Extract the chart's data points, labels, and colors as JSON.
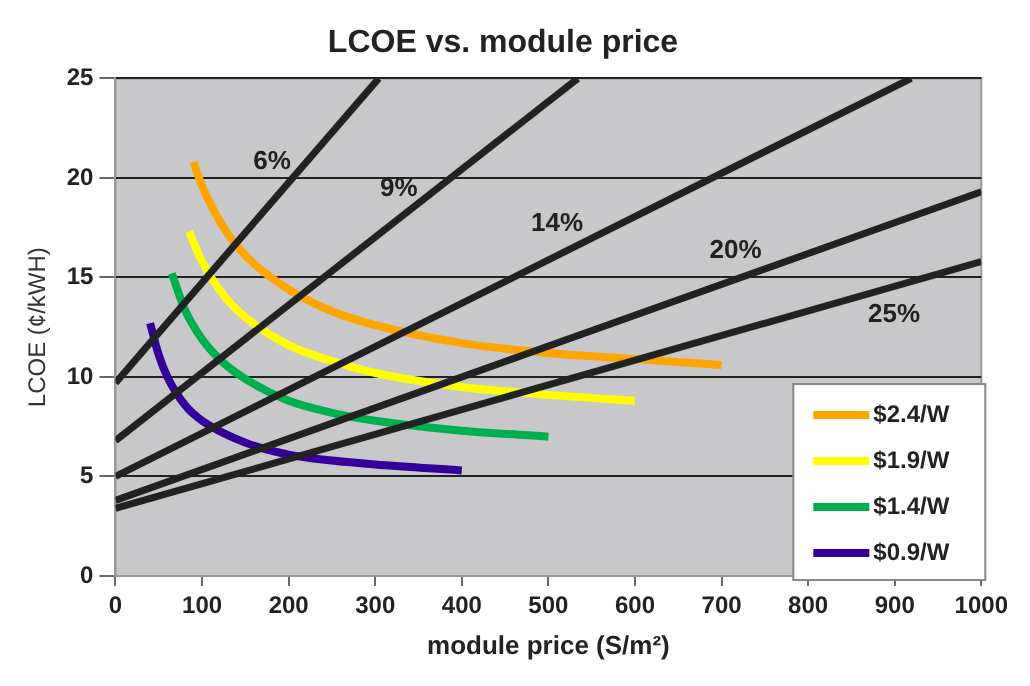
{
  "chart_data": {
    "type": "line",
    "title": "LCOE vs. module price",
    "xlabel": "module price (S/m²)",
    "ylabel": "LCOE (¢/kWH)",
    "xlim": [
      0,
      1000
    ],
    "xticks": [
      0,
      100,
      200,
      300,
      400,
      500,
      600,
      700,
      800,
      900,
      1000
    ],
    "ylim": [
      0,
      25
    ],
    "yticks": [
      0,
      5,
      10,
      15,
      20,
      25
    ],
    "grid": "y",
    "legend": "bottom right",
    "marker": "none",
    "line_style": "solid",
    "series": [
      {
        "color": "#222222",
        "x": [
          0,
          304
        ],
        "values": [
          9.7,
          25
        ]
      },
      {
        "color": "#222222",
        "x": [
          0,
          534
        ],
        "values": [
          6.8,
          25
        ]
      },
      {
        "color": "#222222",
        "x": [
          0,
          919
        ],
        "values": [
          5.0,
          25
        ]
      },
      {
        "color": "#222222",
        "x": [
          0,
          1000
        ],
        "values": [
          3.8,
          19.3
        ]
      },
      {
        "color": "#222222",
        "x": [
          0,
          1000
        ],
        "values": [
          3.4,
          15.8
        ]
      },
      {
        "name": "$2.4/W",
        "color": "#ffa500",
        "x": [
          90,
          100,
          125,
          150,
          200,
          250,
          300,
          400,
          500,
          600,
          700
        ],
        "values": [
          20.8,
          19.6,
          17.5,
          16.1,
          14.4,
          13.3,
          12.6,
          11.7,
          11.2,
          10.9,
          10.6
        ]
      },
      {
        "name": "$1.9/W",
        "color": "#ffff00",
        "x": [
          85,
          100,
          125,
          150,
          200,
          250,
          300,
          400,
          500,
          600
        ],
        "values": [
          17.3,
          15.8,
          14.1,
          13.0,
          11.6,
          10.8,
          10.2,
          9.5,
          9.1,
          8.8
        ]
      },
      {
        "name": "$1.4/W",
        "color": "#00b050",
        "x": [
          65,
          80,
          100,
          125,
          150,
          200,
          250,
          300,
          400,
          500
        ],
        "values": [
          15.2,
          13.4,
          11.9,
          10.7,
          9.9,
          8.8,
          8.2,
          7.8,
          7.3,
          7.0
        ]
      },
      {
        "name": "$0.9/W",
        "color": "#330099",
        "x": [
          40,
          50,
          60,
          80,
          100,
          150,
          200,
          250,
          300,
          400
        ],
        "values": [
          12.7,
          11.1,
          10.0,
          8.6,
          7.8,
          6.7,
          6.1,
          5.8,
          5.6,
          5.3
        ]
      }
    ],
    "annotations": [
      "6%",
      "9%",
      "14%",
      "20%",
      "25%"
    ]
  }
}
